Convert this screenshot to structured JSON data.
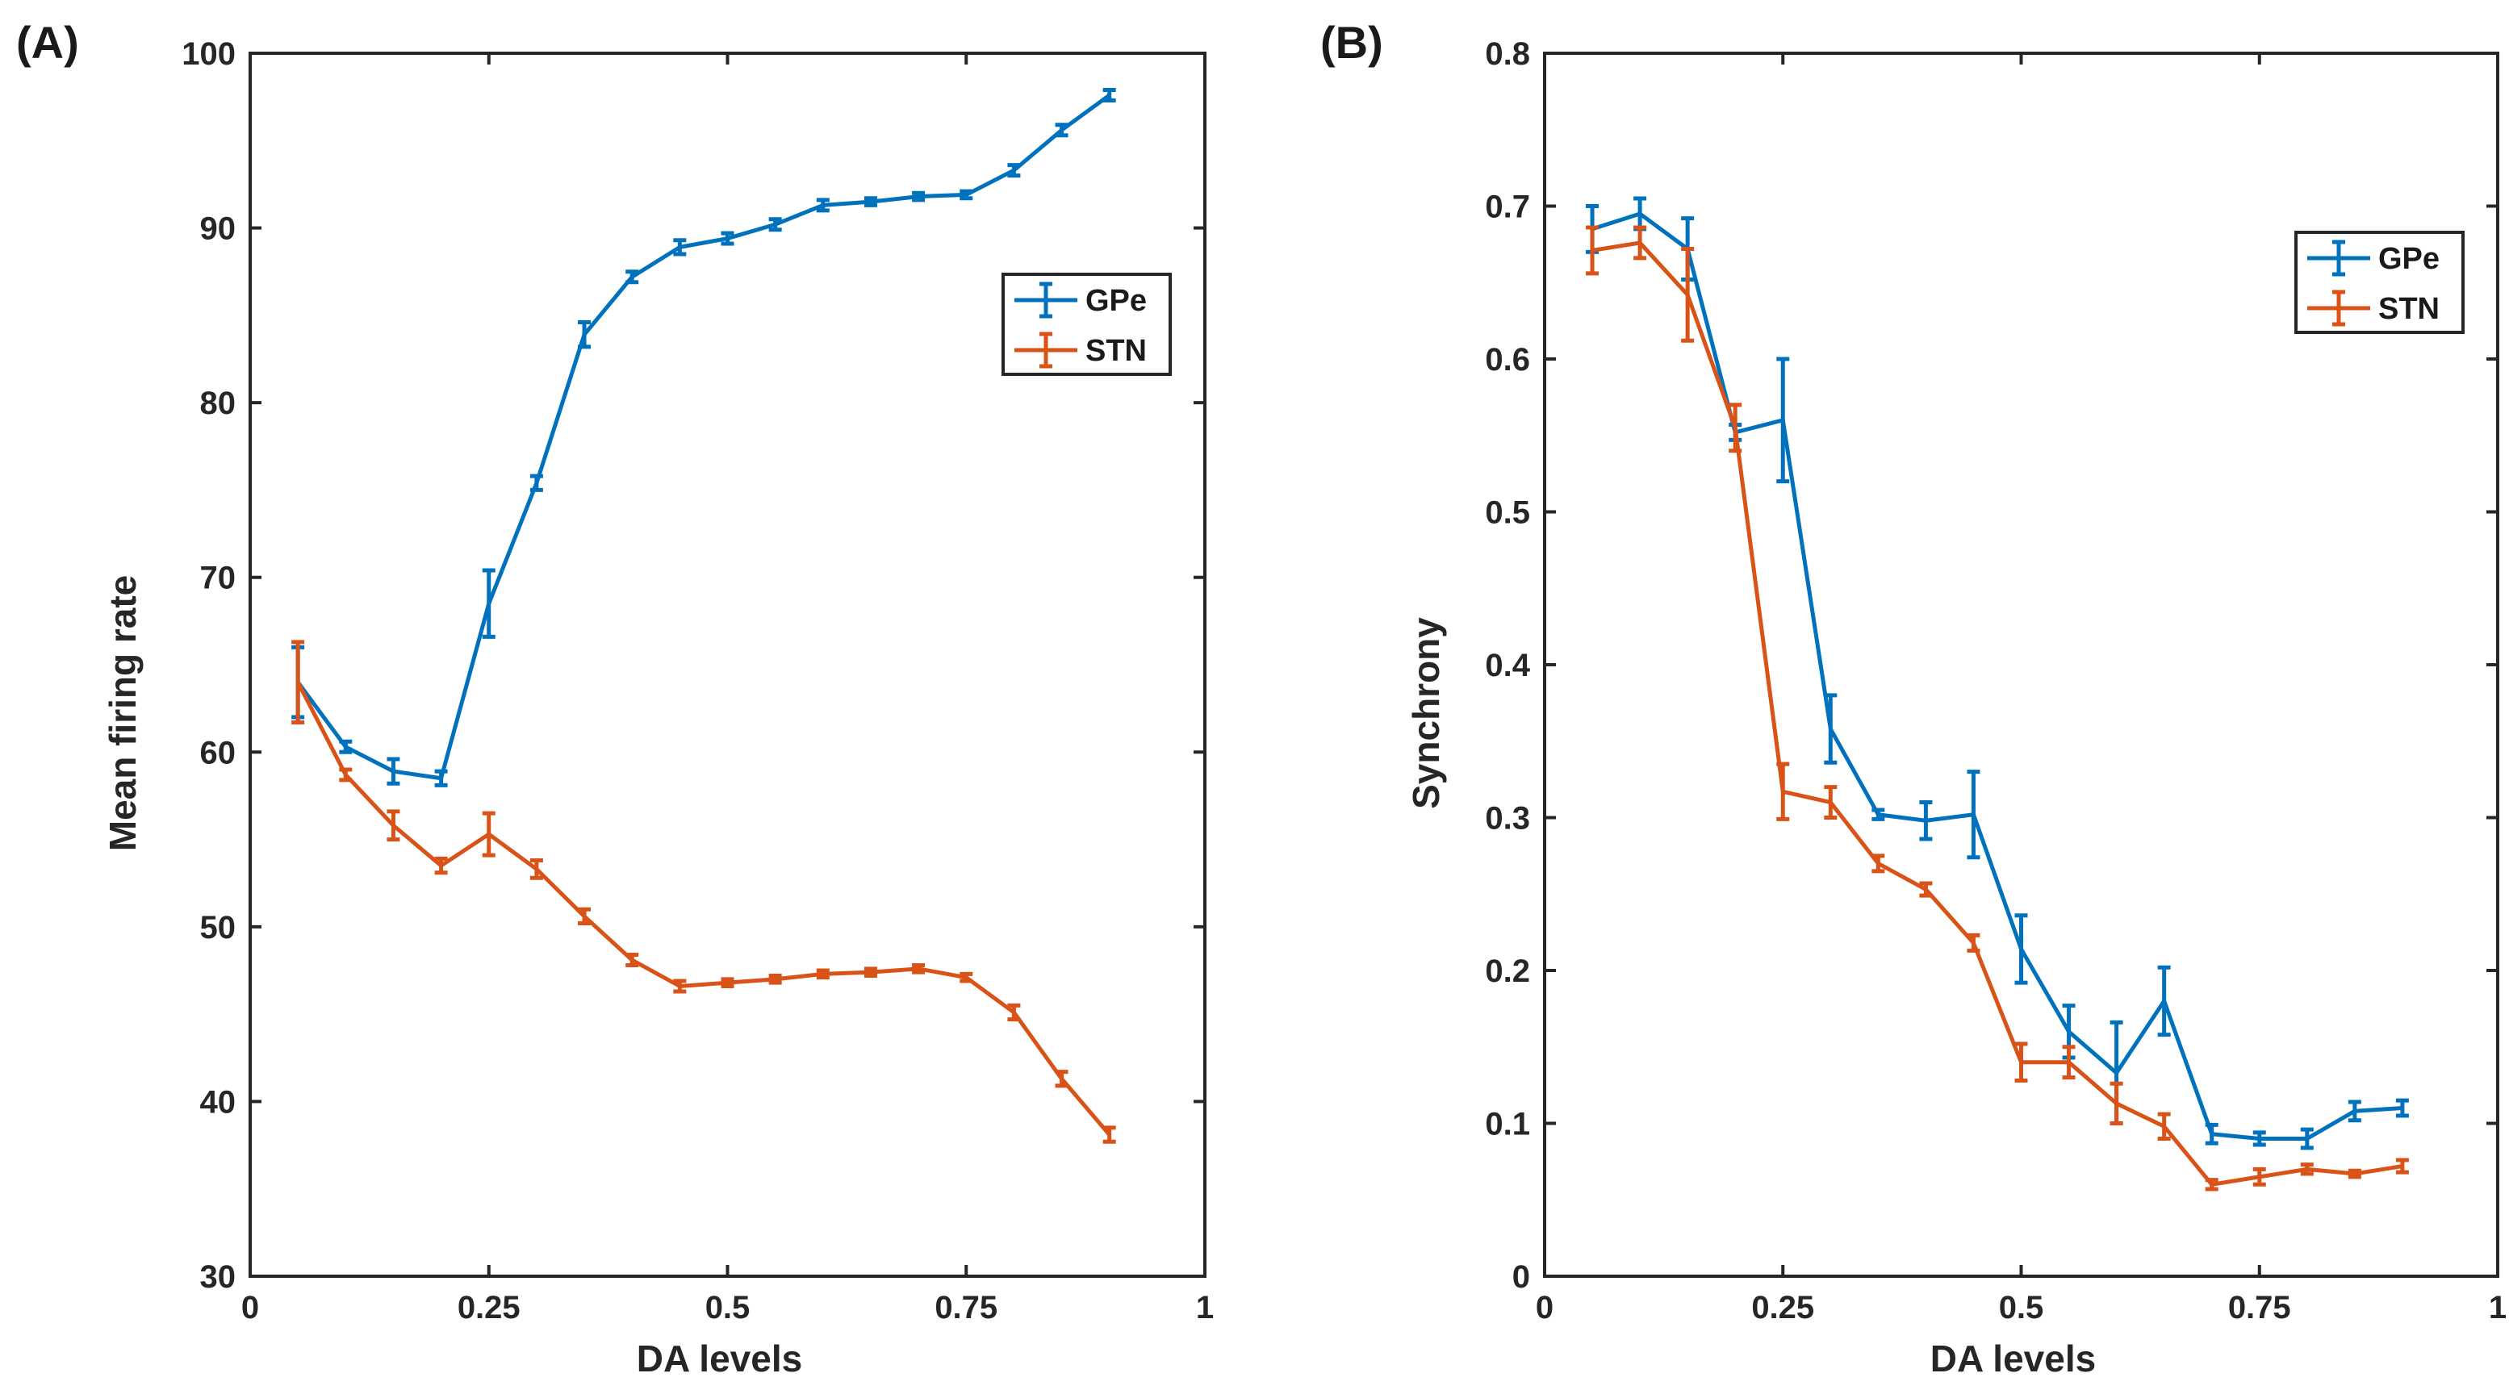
{
  "chart_data": [
    {
      "type": "line",
      "panel_label": "(A)",
      "xlabel": "DA levels",
      "ylabel": "Mean firing rate",
      "xlim": [
        0,
        1
      ],
      "ylim": [
        30,
        100
      ],
      "xticks": [
        0,
        0.25,
        0.5,
        0.75,
        1
      ],
      "xtick_labels": [
        "0",
        "0.25",
        "0.5",
        "0.75",
        "1"
      ],
      "yticks": [
        30,
        40,
        50,
        60,
        70,
        80,
        90,
        100
      ],
      "ytick_labels": [
        "30",
        "40",
        "50",
        "60",
        "70",
        "80",
        "90",
        "100"
      ],
      "legend_position": "upper-right",
      "x": [
        0.05,
        0.1,
        0.15,
        0.2,
        0.25,
        0.3,
        0.35,
        0.4,
        0.45,
        0.5,
        0.55,
        0.6,
        0.65,
        0.7,
        0.75,
        0.8,
        0.85,
        0.9
      ],
      "series": [
        {
          "name": "GPe",
          "color": "#0072BD",
          "values": [
            64,
            60.3,
            58.9,
            58.5,
            68.5,
            75.4,
            83.9,
            87.2,
            88.9,
            89.4,
            90.2,
            91.3,
            91.5,
            91.8,
            91.9,
            93.3,
            95.6,
            97.6
          ],
          "errors": [
            2.0,
            0.3,
            0.7,
            0.4,
            1.9,
            0.4,
            0.7,
            0.3,
            0.4,
            0.3,
            0.3,
            0.3,
            0.2,
            0.2,
            0.2,
            0.3,
            0.3,
            0.3
          ]
        },
        {
          "name": "STN",
          "color": "#D95319",
          "values": [
            64,
            58.7,
            55.8,
            53.5,
            55.3,
            53.3,
            50.6,
            48.1,
            46.6,
            46.8,
            47.0,
            47.3,
            47.4,
            47.6,
            47.1,
            45.1,
            41.3,
            38.1
          ],
          "errors": [
            2.3,
            0.3,
            0.8,
            0.4,
            1.2,
            0.5,
            0.4,
            0.3,
            0.3,
            0.2,
            0.2,
            0.2,
            0.2,
            0.2,
            0.2,
            0.4,
            0.4,
            0.4
          ]
        }
      ]
    },
    {
      "type": "line",
      "panel_label": "(B)",
      "xlabel": "DA levels",
      "ylabel": "Synchrony",
      "xlim": [
        0,
        1
      ],
      "ylim": [
        0,
        0.8
      ],
      "xticks": [
        0,
        0.25,
        0.5,
        0.75,
        1
      ],
      "xtick_labels": [
        "0",
        "0.25",
        "0.5",
        "0.75",
        "1"
      ],
      "yticks": [
        0,
        0.1,
        0.2,
        0.3,
        0.4,
        0.5,
        0.6,
        0.7,
        0.8
      ],
      "ytick_labels": [
        "0",
        "0.1",
        "0.2",
        "0.3",
        "0.4",
        "0.5",
        "0.6",
        "0.7",
        "0.8"
      ],
      "legend_position": "upper-right",
      "x": [
        0.05,
        0.1,
        0.15,
        0.2,
        0.25,
        0.3,
        0.35,
        0.4,
        0.45,
        0.5,
        0.55,
        0.6,
        0.65,
        0.7,
        0.75,
        0.8,
        0.85,
        0.9
      ],
      "series": [
        {
          "name": "GPe",
          "color": "#0072BD",
          "values": [
            0.685,
            0.695,
            0.672,
            0.552,
            0.56,
            0.358,
            0.302,
            0.298,
            0.302,
            0.214,
            0.16,
            0.133,
            0.18,
            0.093,
            0.09,
            0.09,
            0.108,
            0.11
          ],
          "errors": [
            0.015,
            0.01,
            0.02,
            0.005,
            0.04,
            0.022,
            0.003,
            0.012,
            0.028,
            0.022,
            0.017,
            0.033,
            0.022,
            0.006,
            0.004,
            0.006,
            0.006,
            0.005
          ]
        },
        {
          "name": "STN",
          "color": "#D95319",
          "values": [
            0.671,
            0.676,
            0.642,
            0.555,
            0.317,
            0.31,
            0.27,
            0.253,
            0.218,
            0.14,
            0.14,
            0.113,
            0.098,
            0.06,
            0.065,
            0.07,
            0.067,
            0.072
          ],
          "errors": [
            0.015,
            0.01,
            0.03,
            0.015,
            0.018,
            0.01,
            0.005,
            0.004,
            0.005,
            0.012,
            0.01,
            0.013,
            0.008,
            0.003,
            0.005,
            0.003,
            0.002,
            0.004
          ]
        }
      ]
    }
  ]
}
